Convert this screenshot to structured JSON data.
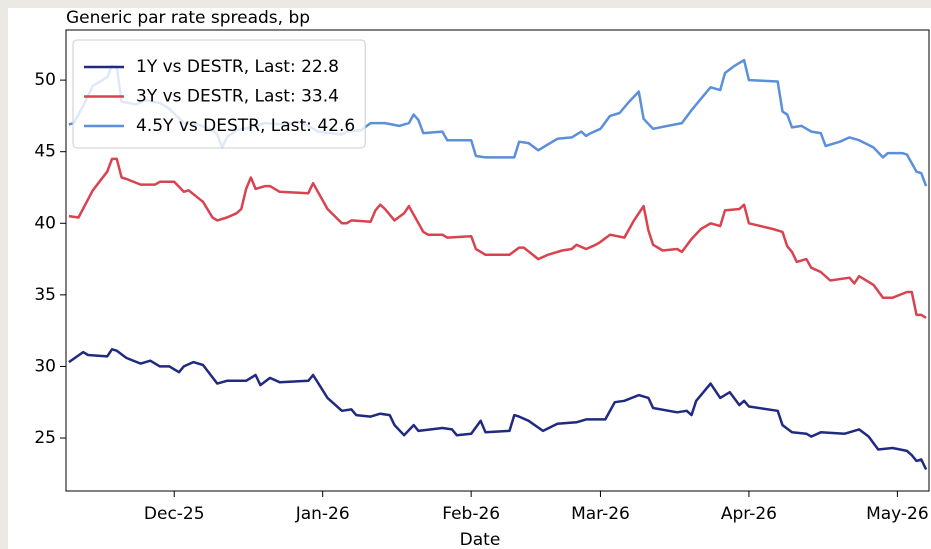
{
  "chart_data": {
    "type": "line",
    "title": "Generic par rate spreads, bp",
    "x_label": "Date",
    "xlim": [
      -0.6,
      179.6
    ],
    "xticks": [
      {
        "value": 22,
        "label": "Dec-25"
      },
      {
        "value": 53,
        "label": "Jan-26"
      },
      {
        "value": 84,
        "label": "Feb-26"
      },
      {
        "value": 111,
        "label": "Mar-26"
      },
      {
        "value": 142,
        "label": "Apr-26"
      },
      {
        "value": 173,
        "label": "May-26"
      }
    ],
    "ylim": [
      21.3,
      53.5
    ],
    "yticks": [
      25,
      30,
      35,
      40,
      45,
      50
    ],
    "grid": false,
    "legend": "upper left",
    "series": [
      {
        "name": "1Y vs DESTR, Last: 22.8",
        "color": "#1f2a80",
        "x": [
          0,
          3,
          4,
          8,
          9,
          10,
          12,
          15,
          17,
          19,
          21,
          23,
          24,
          26,
          28,
          31,
          33,
          37,
          39,
          40,
          42,
          44,
          50,
          51,
          54,
          57,
          59,
          60,
          63,
          65,
          67,
          68,
          70,
          72,
          73,
          78,
          80,
          81,
          84,
          86,
          87,
          92,
          93,
          94,
          96,
          99,
          102,
          106,
          108,
          112,
          114,
          116,
          119,
          121,
          122,
          127,
          129,
          130,
          131,
          134,
          136,
          138,
          140,
          141,
          142,
          148,
          149,
          151,
          154,
          155,
          157,
          162,
          165,
          167,
          169,
          172,
          175,
          176,
          177,
          178,
          179
        ],
        "values": [
          30.3,
          31.0,
          30.8,
          30.7,
          31.2,
          31.1,
          30.6,
          30.2,
          30.4,
          30.0,
          30.0,
          29.6,
          30.0,
          30.3,
          30.1,
          28.8,
          29.0,
          29.0,
          29.4,
          28.7,
          29.2,
          28.9,
          29.0,
          29.4,
          27.8,
          26.9,
          27.0,
          26.6,
          26.5,
          26.7,
          26.6,
          25.9,
          25.2,
          25.9,
          25.5,
          25.7,
          25.6,
          25.2,
          25.3,
          26.2,
          25.4,
          25.5,
          26.6,
          26.5,
          26.2,
          25.5,
          26.0,
          26.1,
          26.3,
          26.3,
          27.5,
          27.6,
          28.0,
          27.8,
          27.1,
          26.8,
          26.9,
          26.6,
          27.6,
          28.8,
          27.8,
          28.2,
          27.3,
          27.6,
          27.2,
          26.9,
          25.9,
          25.4,
          25.3,
          25.1,
          25.4,
          25.3,
          25.6,
          25.1,
          24.2,
          24.3,
          24.1,
          23.8,
          23.4,
          23.5,
          22.8
        ]
      },
      {
        "name": "3Y vs DESTR, Last: 33.4",
        "color": "#d9434f",
        "x": [
          0,
          2,
          5,
          8,
          9,
          10,
          11,
          12,
          15,
          18,
          19,
          22,
          24,
          25,
          28,
          30,
          31,
          33,
          35,
          36,
          37,
          38,
          39,
          41,
          42,
          44,
          50,
          51,
          54,
          57,
          58,
          59,
          63,
          64,
          65,
          66,
          68,
          70,
          71,
          73,
          74,
          75,
          78,
          79,
          84,
          85,
          87,
          92,
          94,
          95,
          98,
          100,
          103,
          105,
          106,
          108,
          110,
          111,
          113,
          116,
          118,
          120,
          121,
          122,
          124,
          127,
          128,
          130,
          132,
          134,
          136,
          137,
          140,
          141,
          142,
          147,
          149,
          150,
          151,
          152,
          154,
          155,
          157,
          159,
          163,
          164,
          165,
          168,
          170,
          172,
          175,
          176,
          177,
          178,
          179
        ],
        "values": [
          40.5,
          40.4,
          42.3,
          43.6,
          44.5,
          44.5,
          43.2,
          43.1,
          42.7,
          42.7,
          42.9,
          42.9,
          42.2,
          42.3,
          41.5,
          40.4,
          40.2,
          40.4,
          40.7,
          41.0,
          42.4,
          43.2,
          42.4,
          42.6,
          42.6,
          42.2,
          42.1,
          42.8,
          41.0,
          40.0,
          40.0,
          40.2,
          40.1,
          40.9,
          41.3,
          41.0,
          40.2,
          40.7,
          41.2,
          40.0,
          39.4,
          39.2,
          39.2,
          39.0,
          39.1,
          38.2,
          37.8,
          37.8,
          38.3,
          38.3,
          37.5,
          37.8,
          38.1,
          38.2,
          38.5,
          38.2,
          38.5,
          38.7,
          39.2,
          39.0,
          40.2,
          41.2,
          39.5,
          38.5,
          38.1,
          38.2,
          38.0,
          38.9,
          39.6,
          40.0,
          39.8,
          40.9,
          41.0,
          41.3,
          40.0,
          39.6,
          39.4,
          38.4,
          38.0,
          37.3,
          37.5,
          36.9,
          36.6,
          36.0,
          36.2,
          35.8,
          36.3,
          35.7,
          34.8,
          34.8,
          35.2,
          35.2,
          33.6,
          33.6,
          33.4
        ]
      },
      {
        "name": "4.5Y vs DESTR, Last: 42.6",
        "color": "#5b8fd9",
        "x": [
          0,
          1,
          3,
          5,
          8,
          9,
          10,
          11,
          14,
          16,
          19,
          21,
          24,
          27,
          30,
          31,
          32,
          33,
          35,
          38,
          41,
          45,
          48,
          50,
          52,
          57,
          58,
          61,
          63,
          66,
          69,
          71,
          72,
          73,
          74,
          78,
          79,
          84,
          85,
          87,
          93,
          94,
          96,
          98,
          100,
          102,
          105,
          107,
          108,
          109,
          111,
          113,
          115,
          117,
          119,
          120,
          122,
          125,
          128,
          130,
          132,
          134,
          136,
          137,
          139,
          141,
          142,
          148,
          149,
          150,
          151,
          153,
          155,
          157,
          158,
          161,
          163,
          165,
          168,
          170,
          171,
          174,
          175,
          177,
          178,
          179
        ],
        "values": [
          46.9,
          47.0,
          48.2,
          49.6,
          50.2,
          51.0,
          50.9,
          48.5,
          48.3,
          48.6,
          48.4,
          48.0,
          47.0,
          46.9,
          46.5,
          46.2,
          45.3,
          46.0,
          46.5,
          46.7,
          47.0,
          46.9,
          47.1,
          46.8,
          46.4,
          46.2,
          46.4,
          46.5,
          47.0,
          47.0,
          46.8,
          47.0,
          47.6,
          47.2,
          46.3,
          46.4,
          45.8,
          45.8,
          44.7,
          44.6,
          44.6,
          45.7,
          45.6,
          45.1,
          45.5,
          45.9,
          46.0,
          46.4,
          46.1,
          46.3,
          46.6,
          47.5,
          47.7,
          48.5,
          49.2,
          47.3,
          46.6,
          46.8,
          47.0,
          47.9,
          48.7,
          49.5,
          49.3,
          50.5,
          51.0,
          51.4,
          50.0,
          49.9,
          47.8,
          47.6,
          46.7,
          46.8,
          46.4,
          46.3,
          45.4,
          45.7,
          46.0,
          45.8,
          45.3,
          44.6,
          44.9,
          44.9,
          44.8,
          43.6,
          43.5,
          42.6
        ]
      }
    ]
  }
}
